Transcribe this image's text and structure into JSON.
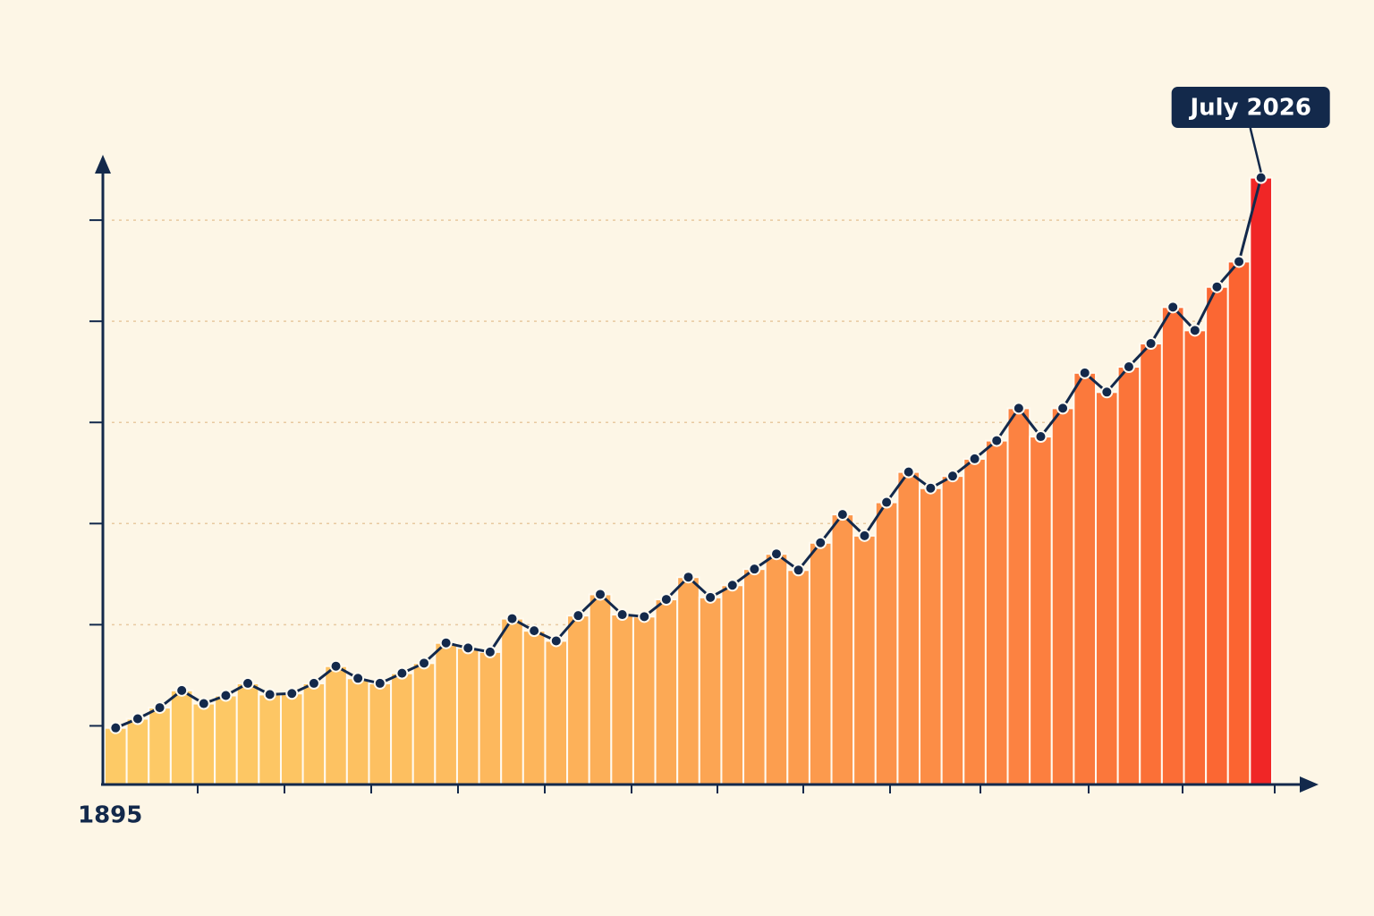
{
  "chart_data": {
    "type": "bar",
    "categories": [
      "1895",
      null,
      null,
      null,
      null,
      null,
      null,
      null,
      null,
      null,
      null,
      null,
      null,
      null,
      null,
      null,
      null,
      null,
      null,
      null,
      null,
      null,
      null,
      null,
      null,
      null,
      null,
      null,
      null,
      null,
      null,
      null,
      null,
      null,
      null,
      null,
      null,
      null,
      null,
      null,
      null,
      null,
      null,
      null,
      null,
      null,
      null,
      null,
      null,
      null,
      null,
      null,
      "July 2026"
    ],
    "values": [
      0.98,
      1.07,
      1.18,
      1.35,
      1.22,
      1.3,
      1.42,
      1.31,
      1.32,
      1.42,
      1.59,
      1.47,
      1.42,
      1.52,
      1.62,
      1.82,
      1.77,
      1.73,
      2.06,
      1.94,
      1.84,
      2.09,
      2.3,
      2.1,
      2.08,
      2.25,
      2.47,
      2.27,
      2.39,
      2.55,
      2.7,
      2.54,
      2.81,
      3.09,
      2.88,
      3.21,
      3.51,
      3.35,
      3.47,
      3.64,
      3.82,
      4.14,
      3.86,
      4.14,
      4.49,
      4.3,
      4.55,
      4.78,
      5.14,
      4.91,
      5.34,
      5.59,
      6.42
    ],
    "color_start": "#fdca66",
    "color_end": "#fb6431",
    "highlight_color": "#f02626",
    "line_color": "#13294b",
    "ylim": [
      0.42,
      6.62
    ],
    "yticks": [
      1,
      2,
      3,
      4,
      5,
      6
    ],
    "grid": true
  }
}
